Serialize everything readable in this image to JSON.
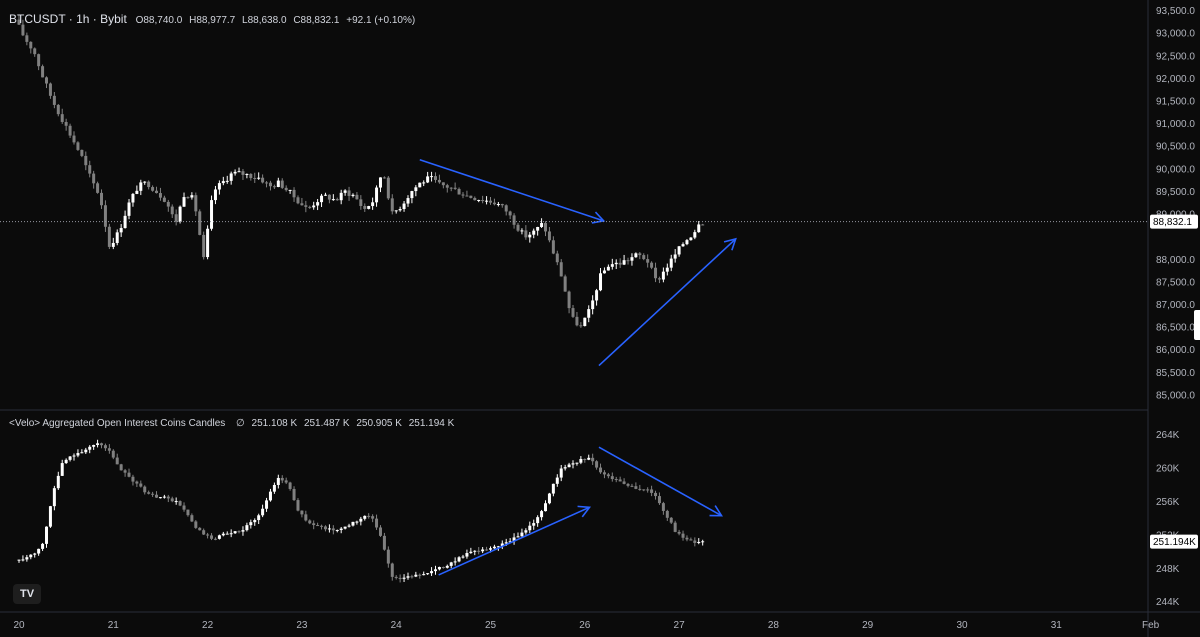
{
  "header": {
    "symbol": "BTCUSDT · 1h · Bybit",
    "open": "O88,740.0",
    "high": "H88,977.7",
    "low": "L88,638.0",
    "close": "C88,832.1",
    "change": "+92.1 (+0.10%)"
  },
  "indicator_header": {
    "name": "<Velo> Aggregated Open Interest Coins Candles",
    "symbol_glyph": "∅",
    "v1": "251.108 K",
    "v2": "251.487 K",
    "v3": "250.905 K",
    "v4": "251.194 K"
  },
  "logo": {
    "icon": "tradingview-logo-icon",
    "text": "TV"
  },
  "colors": {
    "background": "#0b0b0b",
    "up": "#ffffff",
    "down": "#808080",
    "arrows": "#2962ff",
    "axis_text": "#b2b5be",
    "divider": "#2a2e39"
  },
  "chart_data": [
    {
      "type": "candlestick",
      "title": "BTCUSDT · 1h · Bybit",
      "ylim": [
        84800,
        93600
      ],
      "y_ticks": [
        "93,500.0",
        "93,000.0",
        "92,500.0",
        "92,000.0",
        "91,500.0",
        "91,000.0",
        "90,500.0",
        "90,000.0",
        "89,500.0",
        "89,000.0",
        "88,000.0",
        "87,500.0",
        "87,000.0",
        "86,500.0",
        "86,000.0",
        "85,500.0",
        "85,000.0"
      ],
      "last_price_label": "88,832.1",
      "last_price": 88832.1,
      "grid": false,
      "x_ticks": [
        "20",
        "21",
        "22",
        "23",
        "24",
        "25",
        "26",
        "27",
        "28",
        "29",
        "30",
        "31",
        "Feb"
      ],
      "path": [
        [
          20.0,
          93300
        ],
        [
          20.1,
          92900
        ],
        [
          20.2,
          92600
        ],
        [
          20.3,
          92000
        ],
        [
          20.4,
          91500
        ],
        [
          20.5,
          91100
        ],
        [
          20.6,
          90700
        ],
        [
          20.7,
          90300
        ],
        [
          20.8,
          89800
        ],
        [
          20.9,
          89400
        ],
        [
          21.0,
          88300
        ],
        [
          21.1,
          88600
        ],
        [
          21.2,
          89200
        ],
        [
          21.3,
          89600
        ],
        [
          21.4,
          89700
        ],
        [
          21.5,
          89500
        ],
        [
          21.6,
          89300
        ],
        [
          21.7,
          88800
        ],
        [
          21.8,
          89500
        ],
        [
          21.9,
          89300
        ],
        [
          22.0,
          88000
        ],
        [
          22.1,
          89500
        ],
        [
          22.2,
          89700
        ],
        [
          22.3,
          89900
        ],
        [
          22.4,
          89900
        ],
        [
          22.5,
          89850
        ],
        [
          22.6,
          89800
        ],
        [
          22.7,
          89600
        ],
        [
          22.8,
          89700
        ],
        [
          22.9,
          89500
        ],
        [
          23.0,
          89300
        ],
        [
          23.1,
          89100
        ],
        [
          23.2,
          89300
        ],
        [
          23.3,
          89400
        ],
        [
          23.4,
          89300
        ],
        [
          23.5,
          89500
        ],
        [
          23.6,
          89400
        ],
        [
          23.7,
          89100
        ],
        [
          23.8,
          89300
        ],
        [
          23.9,
          90000
        ],
        [
          24.0,
          89000
        ],
        [
          24.1,
          89200
        ],
        [
          24.2,
          89500
        ],
        [
          24.3,
          89700
        ],
        [
          24.4,
          89800
        ],
        [
          24.5,
          89650
        ],
        [
          24.6,
          89600
        ],
        [
          24.7,
          89500
        ],
        [
          24.8,
          89400
        ],
        [
          24.9,
          89350
        ],
        [
          25.0,
          89300
        ],
        [
          25.1,
          89250
        ],
        [
          25.2,
          89100
        ],
        [
          25.3,
          88800
        ],
        [
          25.4,
          88500
        ],
        [
          25.5,
          88600
        ],
        [
          25.6,
          88800
        ],
        [
          25.7,
          88200
        ],
        [
          25.8,
          87600
        ],
        [
          25.9,
          86700
        ],
        [
          26.0,
          86500
        ],
        [
          26.1,
          86900
        ],
        [
          26.2,
          87600
        ],
        [
          26.3,
          87900
        ],
        [
          26.4,
          87900
        ],
        [
          26.5,
          88000
        ],
        [
          26.6,
          88100
        ],
        [
          26.7,
          88000
        ],
        [
          26.8,
          87500
        ],
        [
          26.9,
          87800
        ],
        [
          27.0,
          88100
        ],
        [
          27.1,
          88400
        ],
        [
          27.2,
          88600
        ],
        [
          27.25,
          88832
        ]
      ],
      "annotations": [
        {
          "type": "arrow",
          "from": [
            24.25,
            90200
          ],
          "to": [
            26.2,
            88850
          ]
        },
        {
          "type": "arrow",
          "from": [
            26.15,
            85650
          ],
          "to": [
            27.6,
            88450
          ]
        }
      ]
    },
    {
      "type": "candlestick",
      "title": "<Velo> Aggregated Open Interest Coins Candles",
      "ylim": [
        243000,
        266000
      ],
      "y_ticks": [
        "264K",
        "260K",
        "256K",
        "252K",
        "248K",
        "244K"
      ],
      "last_value_label": "251.194K",
      "last_value": 251194,
      "grid": false,
      "path": [
        [
          20.0,
          249000
        ],
        [
          20.1,
          249200
        ],
        [
          20.2,
          249800
        ],
        [
          20.3,
          251000
        ],
        [
          20.4,
          257000
        ],
        [
          20.5,
          260500
        ],
        [
          20.6,
          261500
        ],
        [
          20.7,
          262000
        ],
        [
          20.8,
          262500
        ],
        [
          20.9,
          263000
        ],
        [
          21.0,
          262000
        ],
        [
          21.1,
          260000
        ],
        [
          21.2,
          259000
        ],
        [
          21.3,
          258000
        ],
        [
          21.4,
          257000
        ],
        [
          21.5,
          256500
        ],
        [
          21.6,
          256500
        ],
        [
          21.7,
          256000
        ],
        [
          21.8,
          255000
        ],
        [
          21.9,
          253000
        ],
        [
          22.0,
          252000
        ],
        [
          22.1,
          251500
        ],
        [
          22.2,
          252000
        ],
        [
          22.3,
          252200
        ],
        [
          22.4,
          252500
        ],
        [
          22.5,
          253500
        ],
        [
          22.6,
          254500
        ],
        [
          22.7,
          257000
        ],
        [
          22.8,
          259000
        ],
        [
          22.9,
          258000
        ],
        [
          23.0,
          255000
        ],
        [
          23.1,
          253500
        ],
        [
          23.2,
          253000
        ],
        [
          23.3,
          252800
        ],
        [
          23.4,
          252500
        ],
        [
          23.5,
          253000
        ],
        [
          23.6,
          253500
        ],
        [
          23.7,
          254200
        ],
        [
          23.8,
          254000
        ],
        [
          23.9,
          251000
        ],
        [
          24.0,
          247000
        ],
        [
          24.1,
          246800
        ],
        [
          24.2,
          247000
        ],
        [
          24.3,
          247300
        ],
        [
          24.4,
          247600
        ],
        [
          24.5,
          248000
        ],
        [
          24.6,
          248500
        ],
        [
          24.7,
          249200
        ],
        [
          24.8,
          249800
        ],
        [
          24.9,
          250000
        ],
        [
          25.0,
          250300
        ],
        [
          25.1,
          250600
        ],
        [
          25.2,
          251000
        ],
        [
          25.3,
          251600
        ],
        [
          25.4,
          252500
        ],
        [
          25.5,
          253500
        ],
        [
          25.6,
          255000
        ],
        [
          25.7,
          258000
        ],
        [
          25.8,
          260000
        ],
        [
          25.9,
          260500
        ],
        [
          26.0,
          261000
        ],
        [
          26.1,
          261200
        ],
        [
          26.2,
          259500
        ],
        [
          26.3,
          259000
        ],
        [
          26.4,
          258500
        ],
        [
          26.5,
          258000
        ],
        [
          26.6,
          257500
        ],
        [
          26.7,
          257500
        ],
        [
          26.8,
          256500
        ],
        [
          26.9,
          254500
        ],
        [
          27.0,
          252500
        ],
        [
          27.1,
          251500
        ],
        [
          27.2,
          251100
        ],
        [
          27.25,
          251194
        ]
      ],
      "annotations": [
        {
          "type": "arrow",
          "from": [
            24.45,
            247200
          ],
          "to": [
            26.05,
            255300
          ]
        },
        {
          "type": "arrow",
          "from": [
            26.15,
            262500
          ],
          "to": [
            27.45,
            254300
          ]
        }
      ]
    }
  ]
}
